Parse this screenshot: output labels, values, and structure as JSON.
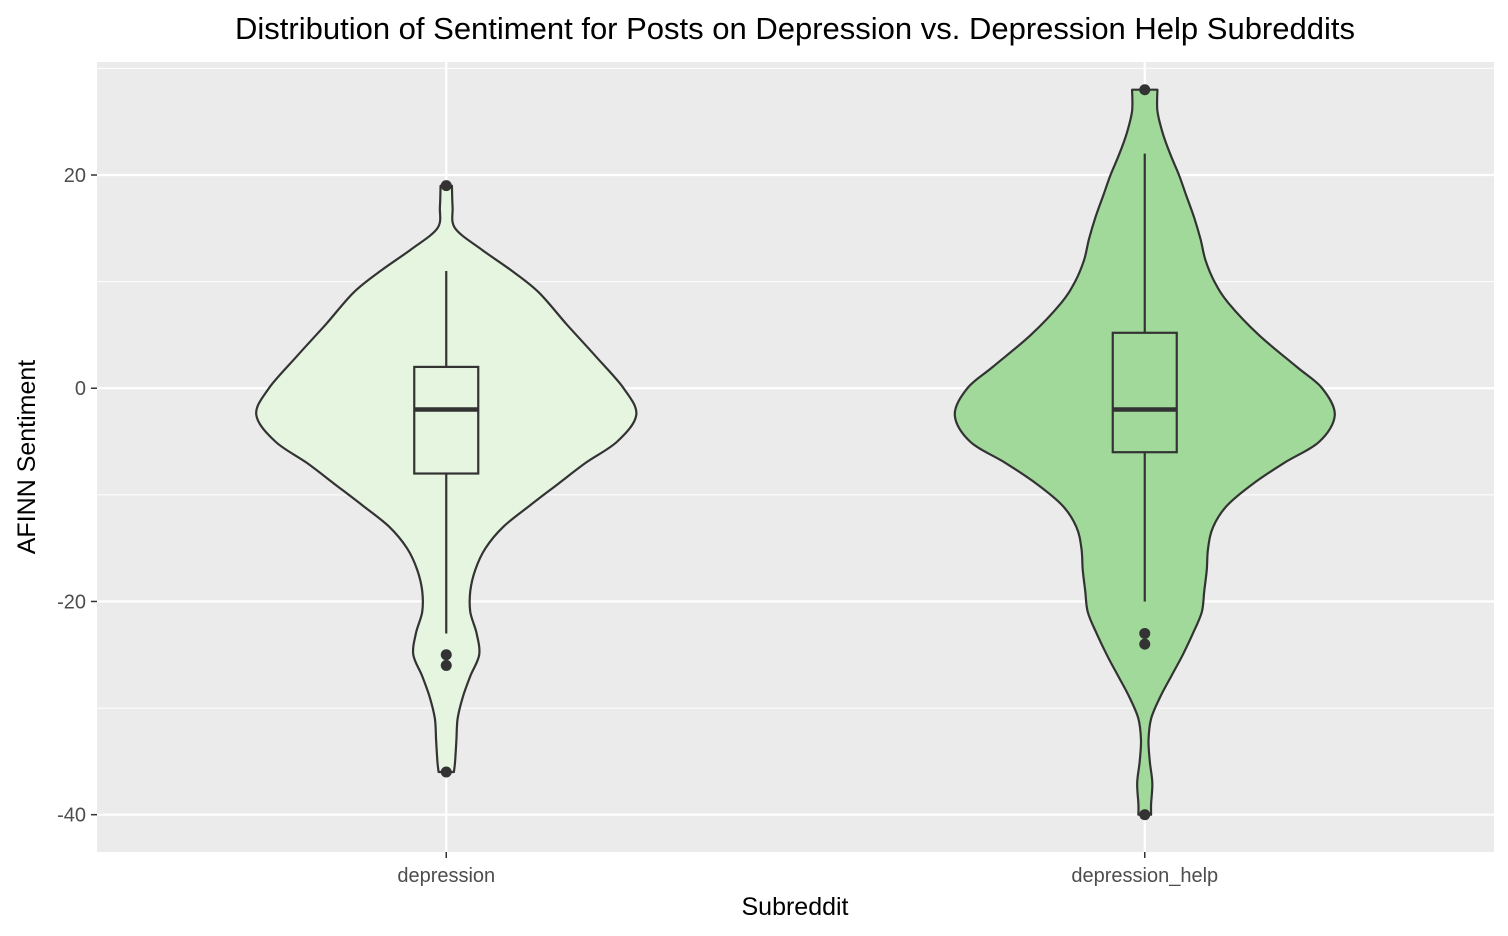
{
  "chart_data": {
    "type": "violin",
    "title": "Distribution of Sentiment for Posts on Depression vs. Depression Help Subreddits",
    "xlabel": "Subreddit",
    "ylabel": "AFINN Sentiment",
    "ylim": [
      -43.5,
      30.6
    ],
    "yticks": [
      -40,
      -20,
      0,
      20
    ],
    "grid": true,
    "legend": "none",
    "categories": [
      "depression",
      "depression_help"
    ],
    "series": [
      {
        "category": "depression",
        "fill": "#e5f5e0",
        "box": {
          "lower_whisker": -23,
          "q1": -8,
          "median": -2,
          "q3": 2,
          "upper_whisker": 11
        },
        "outliers": [
          19,
          -25,
          -26,
          -36
        ],
        "density": [
          [
            19,
            0.045
          ],
          [
            17,
            0.05
          ],
          [
            15,
            0.07
          ],
          [
            13,
            0.28
          ],
          [
            11,
            0.52
          ],
          [
            9,
            0.73
          ],
          [
            6,
            0.95
          ],
          [
            3,
            1.18
          ],
          [
            0,
            1.4
          ],
          [
            -2.5,
            1.5
          ],
          [
            -5,
            1.35
          ],
          [
            -7,
            1.1
          ],
          [
            -9,
            0.88
          ],
          [
            -11,
            0.66
          ],
          [
            -13,
            0.45
          ],
          [
            -15,
            0.31
          ],
          [
            -17,
            0.23
          ],
          [
            -19,
            0.19
          ],
          [
            -21,
            0.19
          ],
          [
            -23,
            0.24
          ],
          [
            -25,
            0.26
          ],
          [
            -27,
            0.19
          ],
          [
            -29,
            0.13
          ],
          [
            -31,
            0.09
          ],
          [
            -33,
            0.08
          ],
          [
            -35,
            0.07
          ],
          [
            -36,
            0.06
          ]
        ]
      },
      {
        "category": "depression_help",
        "fill": "#a1d99b",
        "box": {
          "lower_whisker": -20,
          "q1": -6,
          "median": -2,
          "q3": 5.2,
          "upper_whisker": 22
        },
        "outliers": [
          28,
          -23,
          -24,
          -40
        ],
        "density": [
          [
            28,
            0.1
          ],
          [
            26,
            0.1
          ],
          [
            24,
            0.14
          ],
          [
            22,
            0.2
          ],
          [
            20,
            0.27
          ],
          [
            18,
            0.33
          ],
          [
            16,
            0.39
          ],
          [
            14,
            0.44
          ],
          [
            12,
            0.48
          ],
          [
            10,
            0.55
          ],
          [
            8,
            0.66
          ],
          [
            5,
            0.9
          ],
          [
            2,
            1.2
          ],
          [
            0,
            1.4
          ],
          [
            -2.5,
            1.5
          ],
          [
            -5,
            1.38
          ],
          [
            -7,
            1.1
          ],
          [
            -9,
            0.85
          ],
          [
            -11,
            0.65
          ],
          [
            -13,
            0.54
          ],
          [
            -15,
            0.5
          ],
          [
            -17,
            0.49
          ],
          [
            -19,
            0.47
          ],
          [
            -21,
            0.45
          ],
          [
            -23,
            0.38
          ],
          [
            -25,
            0.3
          ],
          [
            -27,
            0.21
          ],
          [
            -29,
            0.12
          ],
          [
            -31,
            0.05
          ],
          [
            -33,
            0.03
          ],
          [
            -35,
            0.04
          ],
          [
            -37,
            0.06
          ],
          [
            -39,
            0.05
          ],
          [
            -40,
            0.05
          ]
        ]
      }
    ]
  }
}
